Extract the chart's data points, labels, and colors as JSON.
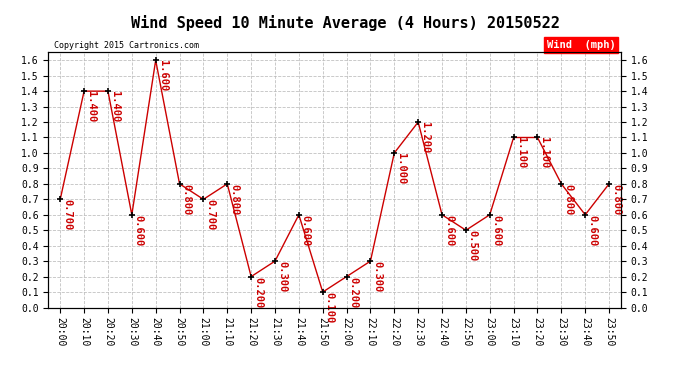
{
  "title": "Wind Speed 10 Minute Average (4 Hours) 20150522",
  "ylabel": "Wind  (mph)",
  "copyright": "Copyright 2015 Cartronics.com",
  "line_color": "#cc0000",
  "marker_color": "#000000",
  "background_color": "#ffffff",
  "grid_color": "#bbbbbb",
  "ylim": [
    0.0,
    1.65
  ],
  "yticks": [
    0.0,
    0.1,
    0.2,
    0.3,
    0.4,
    0.5,
    0.6,
    0.7,
    0.8,
    0.9,
    1.0,
    1.1,
    1.2,
    1.3,
    1.4,
    1.5,
    1.6
  ],
  "times": [
    "20:00",
    "20:10",
    "20:20",
    "20:30",
    "20:40",
    "20:50",
    "21:00",
    "21:10",
    "21:20",
    "21:30",
    "21:40",
    "21:50",
    "22:00",
    "22:10",
    "22:20",
    "22:30",
    "22:40",
    "22:50",
    "23:00",
    "23:10",
    "23:20",
    "23:30",
    "23:40",
    "23:50"
  ],
  "values": [
    0.7,
    1.4,
    1.4,
    0.6,
    1.6,
    0.8,
    0.7,
    0.8,
    0.2,
    0.3,
    0.6,
    0.1,
    0.2,
    0.3,
    1.0,
    1.2,
    0.6,
    0.5,
    0.6,
    1.1,
    1.1,
    0.8,
    0.6,
    0.8
  ],
  "title_fontsize": 11,
  "label_fontsize": 7.5,
  "tick_fontsize": 7,
  "annot_fontsize": 7.5
}
